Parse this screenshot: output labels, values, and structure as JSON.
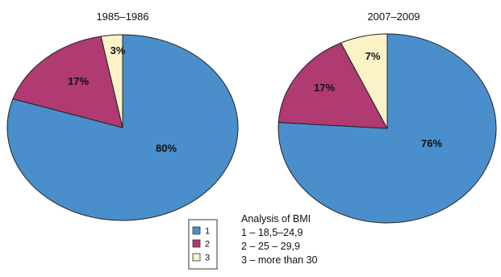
{
  "chart_data": [
    {
      "type": "pie",
      "title": "1985–1986",
      "categories": [
        "1",
        "2",
        "3"
      ],
      "values": [
        80,
        17,
        3
      ],
      "labels": [
        "80%",
        "17%",
        "3%"
      ],
      "colors": [
        "#4a8fcc",
        "#b03a72",
        "#fbf2c8"
      ]
    },
    {
      "type": "pie",
      "title": "2007–2009",
      "categories": [
        "1",
        "2",
        "3"
      ],
      "values": [
        76,
        17,
        7
      ],
      "labels": [
        "76%",
        "17%",
        "7%"
      ],
      "colors": [
        "#4a8fcc",
        "#b03a72",
        "#fbf2c8"
      ]
    }
  ],
  "legend": {
    "items": [
      {
        "label": "1",
        "color": "#4a8fcc"
      },
      {
        "label": "2",
        "color": "#b03a72"
      },
      {
        "label": "3",
        "color": "#fbf2c8"
      }
    ]
  },
  "note": {
    "title": "Analysis  of BMI",
    "lines": [
      "1 –  18,5–24,9",
      "2 – 25 – 29,9",
      "3 – more than 30"
    ]
  }
}
